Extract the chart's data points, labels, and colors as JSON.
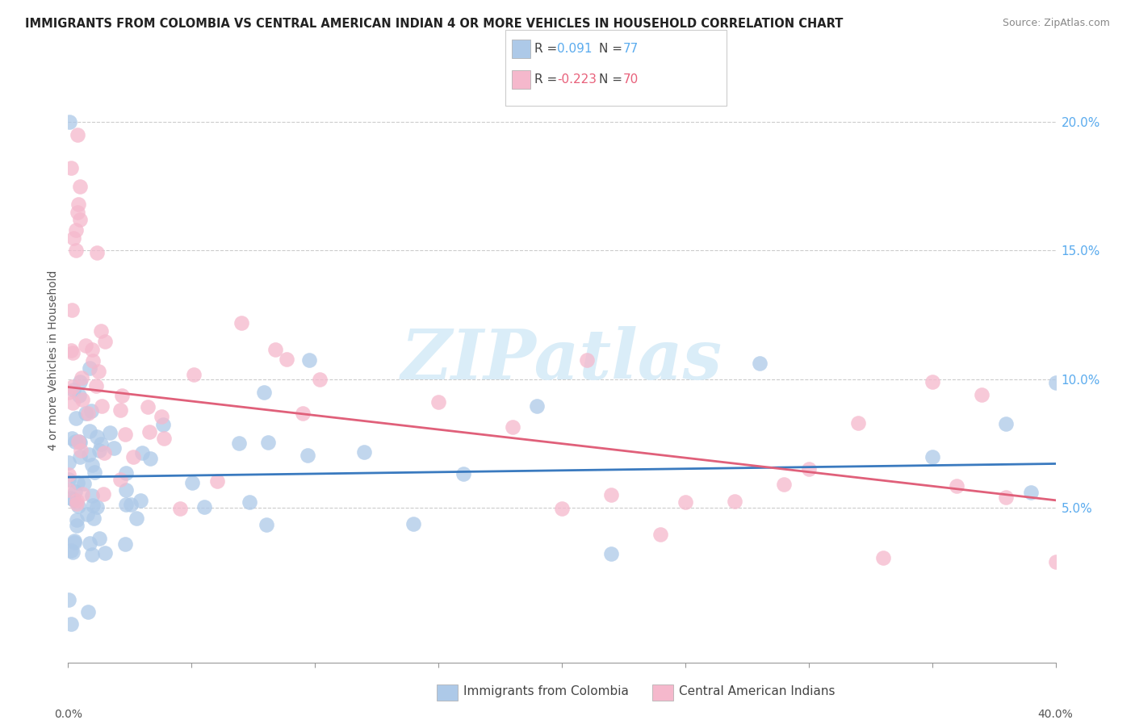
{
  "title": "IMMIGRANTS FROM COLOMBIA VS CENTRAL AMERICAN INDIAN 4 OR MORE VEHICLES IN HOUSEHOLD CORRELATION CHART",
  "source": "Source: ZipAtlas.com",
  "ylabel": "4 or more Vehicles in Household",
  "right_yticklabels": [
    "5.0%",
    "10.0%",
    "15.0%",
    "20.0%"
  ],
  "right_yticks": [
    0.05,
    0.1,
    0.15,
    0.2
  ],
  "legend_blue_r": "0.091",
  "legend_blue_n": "77",
  "legend_pink_r": "-0.223",
  "legend_pink_n": "70",
  "blue_color": "#adc9e8",
  "pink_color": "#f5b8cc",
  "trend_blue": "#3a7abf",
  "trend_pink": "#e0607a",
  "watermark_color": "#daedf8",
  "xlim": [
    0.0,
    0.4
  ],
  "ylim": [
    -0.01,
    0.225
  ]
}
